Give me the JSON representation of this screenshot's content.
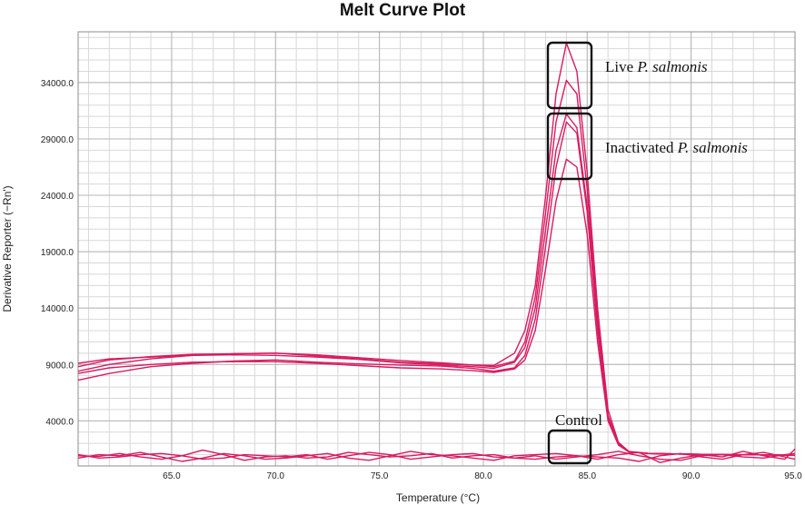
{
  "chart_data": {
    "type": "line",
    "title": "Melt Curve Plot",
    "xlabel": "Temperature (°C)",
    "ylabel": "Derivative Reporter (−Rn')",
    "xlim": [
      60.5,
      95.0
    ],
    "ylim": [
      0,
      38500
    ],
    "xticks": [
      65.0,
      70.0,
      75.0,
      80.0,
      85.0,
      90.0,
      95.0
    ],
    "xtick_labels": [
      "65.0",
      "70.0",
      "75.0",
      "80.0",
      "85.0",
      "90.0",
      "95.0"
    ],
    "yticks": [
      4000,
      9000,
      14000,
      19000,
      24000,
      29000,
      34000
    ],
    "ytick_labels": [
      "4000.0",
      "9000.0",
      "14000.0",
      "19000.0",
      "24000.0",
      "29000.0",
      "34000.0"
    ],
    "grid": true,
    "line_color": "#d81b60",
    "series": [
      {
        "x": [
          60.5,
          62,
          64,
          66,
          68,
          70,
          72,
          74,
          76,
          78,
          79.5,
          80.5,
          81.5,
          82,
          82.5,
          83,
          83.5,
          84,
          84.5,
          85,
          85.5,
          86,
          86.5,
          87,
          88,
          90,
          92,
          95
        ],
        "values": [
          8800,
          9400,
          9700,
          9900,
          9950,
          10000,
          9750,
          9500,
          9200,
          9050,
          8950,
          8900,
          10000,
          12000,
          16000,
          24000,
          33000,
          37500,
          35000,
          26000,
          14000,
          5000,
          2100,
          1300,
          1100,
          1050,
          1000,
          950
        ]
      },
      {
        "x": [
          60.5,
          62,
          64,
          66,
          68,
          70,
          72,
          74,
          76,
          78,
          79.5,
          80.5,
          81.5,
          82,
          82.5,
          83,
          83.5,
          84,
          84.5,
          85,
          85.5,
          86,
          86.5,
          87,
          88,
          90,
          92,
          95
        ],
        "values": [
          8400,
          9000,
          9500,
          9800,
          9950,
          10000,
          9850,
          9600,
          9350,
          9150,
          8950,
          8800,
          9300,
          11000,
          15000,
          22500,
          30500,
          34200,
          33000,
          24500,
          13000,
          4500,
          2000,
          1250,
          1100,
          1050,
          1000,
          950
        ]
      },
      {
        "x": [
          60.5,
          62,
          64,
          66,
          68,
          70,
          72,
          74,
          76,
          78,
          79.5,
          80.5,
          81.5,
          82,
          82.5,
          83,
          83.5,
          84,
          84.5,
          85,
          85.5,
          86,
          86.5,
          87,
          88,
          90,
          92,
          95
        ],
        "values": [
          9100,
          9500,
          9650,
          9800,
          9850,
          9800,
          9650,
          9450,
          9150,
          8950,
          8800,
          8650,
          9200,
          10500,
          14000,
          21000,
          28000,
          31200,
          30000,
          23000,
          12500,
          4300,
          1950,
          1250,
          1100,
          1050,
          1000,
          950
        ]
      },
      {
        "x": [
          60.5,
          62,
          64,
          66,
          68,
          70,
          72,
          74,
          76,
          78,
          79.5,
          80.5,
          81.5,
          82,
          82.5,
          83,
          83.5,
          84,
          84.5,
          85,
          85.5,
          86,
          86.5,
          87,
          88,
          90,
          92,
          95
        ],
        "values": [
          7600,
          8200,
          8800,
          9100,
          9300,
          9400,
          9200,
          9050,
          8950,
          8850,
          8650,
          8400,
          8700,
          9800,
          13000,
          19500,
          26500,
          30500,
          29500,
          22500,
          12000,
          4200,
          1900,
          1250,
          1100,
          1050,
          1000,
          950
        ]
      },
      {
        "x": [
          60.5,
          62,
          64,
          66,
          68,
          70,
          72,
          74,
          76,
          78,
          79.5,
          80.5,
          81.5,
          82,
          82.5,
          83,
          83.5,
          84,
          84.5,
          85,
          85.5,
          86,
          86.5,
          87,
          88,
          90,
          92,
          95
        ],
        "values": [
          8200,
          8700,
          9000,
          9200,
          9250,
          9250,
          9100,
          8900,
          8700,
          8600,
          8450,
          8300,
          8600,
          9400,
          12000,
          17500,
          23500,
          27200,
          26500,
          20500,
          11000,
          4000,
          1850,
          1250,
          1100,
          1050,
          1000,
          950
        ]
      },
      {
        "x": [
          60.5,
          61.5,
          62.5,
          63.5,
          64.5,
          65.5,
          66.5,
          67.5,
          68.5,
          69.5,
          70.5,
          71.5,
          72.5,
          73.5,
          74.5,
          75.5,
          76.5,
          77.5,
          78.5,
          79.5,
          80.5,
          81.5,
          82.5,
          83.5,
          84.5,
          85.5,
          86.5,
          87.5,
          88.5,
          89.5,
          90.5,
          91.5,
          92.5,
          93.5,
          94.5,
          95
        ],
        "values": [
          900,
          850,
          1100,
          800,
          600,
          900,
          1400,
          1000,
          500,
          800,
          900,
          700,
          800,
          1200,
          1000,
          800,
          900,
          1100,
          700,
          900,
          1000,
          700,
          600,
          800,
          900,
          600,
          1000,
          1200,
          300,
          700,
          1000,
          800,
          1300,
          900,
          600,
          1500
        ]
      },
      {
        "x": [
          60.5,
          61.5,
          62.5,
          63.5,
          64.5,
          65.5,
          66.5,
          67.5,
          68.5,
          69.5,
          70.5,
          71.5,
          72.5,
          73.5,
          74.5,
          75.5,
          76.5,
          77.5,
          78.5,
          79.5,
          80.5,
          81.5,
          82.5,
          83.5,
          84.5,
          85.5,
          86.5,
          87.5,
          88.5,
          89.5,
          90.5,
          91.5,
          92.5,
          93.5,
          94.5,
          95
        ],
        "values": [
          700,
          1000,
          900,
          1200,
          800,
          400,
          700,
          1100,
          900,
          600,
          700,
          900,
          1100,
          700,
          500,
          900,
          1300,
          1000,
          900,
          700,
          500,
          900,
          1000,
          1100,
          900,
          800,
          700,
          400,
          900,
          1100,
          800,
          600,
          1000,
          1200,
          800,
          600
        ]
      },
      {
        "x": [
          60.5,
          61.5,
          62.5,
          63.5,
          64.5,
          65.5,
          66.5,
          67.5,
          68.5,
          69.5,
          70.5,
          71.5,
          72.5,
          73.5,
          74.5,
          75.5,
          76.5,
          77.5,
          78.5,
          79.5,
          80.5,
          81.5,
          82.5,
          83.5,
          84.5,
          85.5,
          86.5,
          87.5,
          88.5,
          89.5,
          90.5,
          91.5,
          92.5,
          93.5,
          94.5,
          95
        ],
        "values": [
          1000,
          700,
          800,
          1000,
          1100,
          900,
          600,
          700,
          1000,
          900,
          800,
          1000,
          600,
          900,
          1200,
          1000,
          600,
          800,
          1000,
          1100,
          800,
          700,
          900,
          600,
          800,
          1000,
          1300,
          900,
          600,
          500,
          900,
          1000,
          800,
          700,
          1000,
          1100
        ]
      }
    ],
    "annotations": [
      {
        "text_before": "Live ",
        "text_italic": "P. salmonis"
      },
      {
        "text_before": "Inactivated ",
        "text_italic": "P. salmonis"
      },
      {
        "text_before": "Control",
        "text_italic": ""
      }
    ]
  }
}
